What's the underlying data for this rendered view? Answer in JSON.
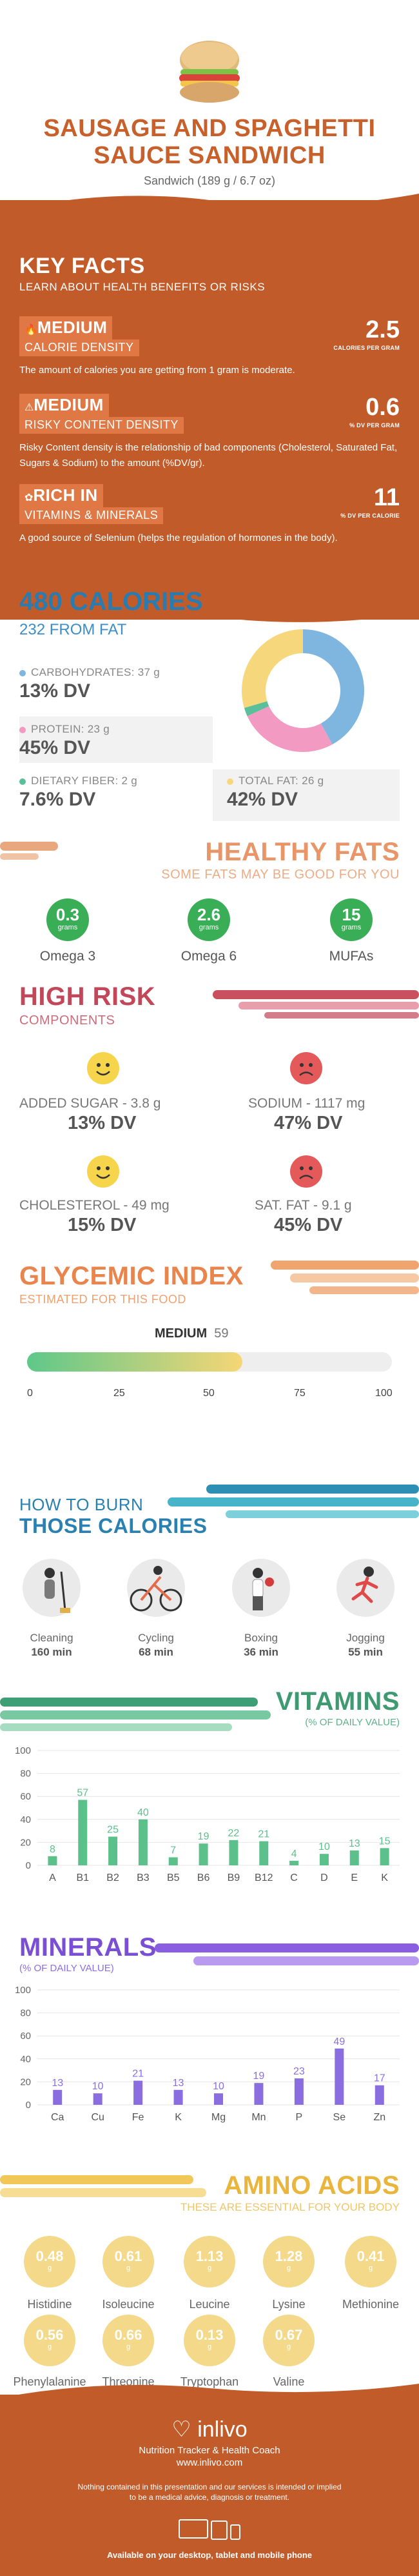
{
  "header": {
    "title_line1": "SAUSAGE AND SPAGHETTI",
    "title_line2": "SAUCE SANDWICH",
    "subtitle": "Sandwich (189 g / 6.7 oz)"
  },
  "key_facts": {
    "title": "KEY FACTS",
    "subtitle": "LEARN ABOUT HEALTH BENEFITS OR RISKS",
    "facts": [
      {
        "level": "MEDIUM",
        "label": "CALORIE DENSITY",
        "value": "2.5",
        "unit": "CALORIES PER GRAM",
        "desc": "The amount of calories you are getting from 1 gram is moderate."
      },
      {
        "level": "MEDIUM",
        "label": "RISKY CONTENT DENSITY",
        "value": "0.6",
        "unit": "% DV PER GRAM",
        "desc": "Risky Content density is the relationship of bad components (Cholesterol, Saturated Fat, Sugars & Sodium) to the amount (%DV/gr)."
      },
      {
        "level": "RICH IN",
        "label": "VITAMINS & MINERALS",
        "value": "11",
        "unit": "% DV PER CALORIE",
        "desc": "A good source of Selenium (helps the regulation of hormones in the body)."
      }
    ]
  },
  "calories": {
    "title": "480 CALORIES",
    "subtitle": "232 FROM FAT",
    "carbs_label": "CARBOHYDRATES: 37 g",
    "carbs_dv": "13% DV",
    "protein_label": "PROTEIN: 23 g",
    "protein_dv": "45% DV",
    "fiber_label": "DIETARY FIBER: 2 g",
    "fiber_dv": "7.6% DV",
    "fat_label": "TOTAL FAT: 26 g",
    "fat_dv": "42% DV",
    "colors": {
      "carbs": "#7fb6e0",
      "protein": "#f29ac2",
      "fiber": "#5bbf9a",
      "fat": "#f7d77c"
    }
  },
  "healthy_fats": {
    "title": "HEALTHY FATS",
    "subtitle": "SOME FATS MAY BE GOOD FOR YOU",
    "items": [
      {
        "value": "0.3",
        "unit": "grams",
        "label": "Omega 3"
      },
      {
        "value": "2.6",
        "unit": "grams",
        "label": "Omega 6"
      },
      {
        "value": "15",
        "unit": "grams",
        "label": "MUFAs"
      }
    ]
  },
  "high_risk": {
    "title": "HIGH RISK",
    "subtitle": "COMPONENTS",
    "items": [
      {
        "label": "ADDED SUGAR - 3.8 g",
        "dv": "13% DV",
        "mood": "happy"
      },
      {
        "label": "SODIUM - 1117 mg",
        "dv": "47% DV",
        "mood": "sad"
      },
      {
        "label": "CHOLESTEROL - 49 mg",
        "dv": "15% DV",
        "mood": "happy"
      },
      {
        "label": "SAT. FAT - 9.1 g",
        "dv": "45% DV",
        "mood": "sad"
      }
    ]
  },
  "glycemic": {
    "title": "GLYCEMIC INDEX",
    "subtitle": "ESTIMATED FOR THIS FOOD",
    "level": "MEDIUM",
    "value": "59",
    "fill_value": 59,
    "ticks": [
      "0",
      "25",
      "50",
      "75",
      "100"
    ]
  },
  "burn": {
    "title1": "HOW TO BURN",
    "title2": "THOSE CALORIES",
    "items": [
      {
        "label": "Cleaning",
        "value": "160 min",
        "icon": "cleaning-icon"
      },
      {
        "label": "Cycling",
        "value": "68 min",
        "icon": "cycling-icon"
      },
      {
        "label": "Boxing",
        "value": "36 min",
        "icon": "boxing-icon"
      },
      {
        "label": "Jogging",
        "value": "55 min",
        "icon": "jogging-icon"
      }
    ]
  },
  "vitamins": {
    "title": "VITAMINS",
    "subtitle": "(% OF DAILY VALUE)"
  },
  "minerals": {
    "title": "MINERALS",
    "subtitle": "(% OF DAILY VALUE)"
  },
  "amino": {
    "title": "AMINO ACIDS",
    "subtitle": "THESE ARE ESSENTIAL FOR YOUR BODY",
    "items": [
      {
        "value": "0.48",
        "unit": "g",
        "label": "Histidine"
      },
      {
        "value": "0.61",
        "unit": "g",
        "label": "Isoleucine"
      },
      {
        "value": "1.13",
        "unit": "g",
        "label": "Leucine"
      },
      {
        "value": "1.28",
        "unit": "g",
        "label": "Lysine"
      },
      {
        "value": "0.41",
        "unit": "g",
        "label": "Methionine"
      },
      {
        "value": "0.56",
        "unit": "g",
        "label": "Phenylalanine"
      },
      {
        "value": "0.66",
        "unit": "g",
        "label": "Threonine"
      },
      {
        "value": "0.13",
        "unit": "g",
        "label": "Tryptophan"
      },
      {
        "value": "0.67",
        "unit": "g",
        "label": "Valine"
      }
    ]
  },
  "footer": {
    "brand": "inlivo",
    "tagline": "Nutrition Tracker & Health Coach",
    "url": "www.inlivo.com",
    "disclaimer1": "Nothing contained in this presentation and our services is intended or implied",
    "disclaimer2": "to be a medical advice, diagnosis or treatment.",
    "available": "Available on your desktop, tablet and mobile phone"
  },
  "chart_data": [
    {
      "type": "pie",
      "categories": [
        "CARBOHYDRATES",
        "PROTEIN",
        "DIETARY FIBER",
        "TOTAL FAT"
      ],
      "values": [
        37,
        23,
        2,
        26
      ],
      "title": "480 CALORIES"
    },
    {
      "type": "bar",
      "title": "VITAMINS",
      "ylabel": "(% OF DAILY VALUE)",
      "categories": [
        "A",
        "B1",
        "B2",
        "B3",
        "B5",
        "B6",
        "B9",
        "B12",
        "C",
        "D",
        "E",
        "K"
      ],
      "values": [
        8,
        57,
        25,
        40,
        7,
        19,
        22,
        21,
        4,
        10,
        13,
        15
      ],
      "ylim": [
        0,
        100
      ],
      "yticks": [
        0,
        20,
        40,
        60,
        80,
        100
      ],
      "color": "#5cc08a"
    },
    {
      "type": "bar",
      "title": "MINERALS",
      "ylabel": "(% OF DAILY VALUE)",
      "categories": [
        "Ca",
        "Cu",
        "Fe",
        "K",
        "Mg",
        "Mn",
        "P",
        "Se",
        "Zn"
      ],
      "values": [
        13,
        10,
        21,
        13,
        10,
        19,
        23,
        49,
        17
      ],
      "ylim": [
        0,
        100
      ],
      "yticks": [
        0,
        20,
        40,
        60,
        80,
        100
      ],
      "color": "#8a6ee0"
    }
  ]
}
